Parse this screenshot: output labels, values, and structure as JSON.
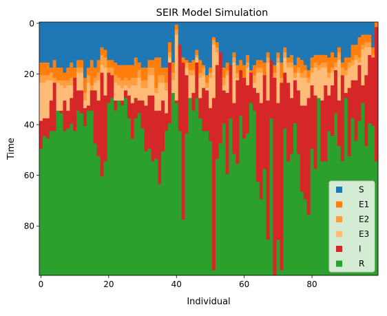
{
  "chart_data": {
    "type": "heatmap",
    "title": "SEIR Model Simulation",
    "xlabel": "Individual",
    "ylabel": "Time",
    "xlim": [
      -0.5,
      99.5
    ],
    "ylim_inverted": [
      -0.5,
      99.5
    ],
    "x_ticks": [
      0,
      20,
      40,
      60,
      80
    ],
    "y_ticks": [
      0,
      20,
      40,
      60,
      80
    ],
    "n_individuals": 100,
    "n_timesteps": 100,
    "grid": false,
    "legend_position": "lower-right",
    "states": [
      {
        "name": "S",
        "color": "#1f77b4"
      },
      {
        "name": "E1",
        "color": "#ff7f0e"
      },
      {
        "name": "E2",
        "color": "#ff9f40"
      },
      {
        "name": "E3",
        "color": "#ffbb78"
      },
      {
        "name": "I",
        "color": "#d62728"
      },
      {
        "name": "R",
        "color": "#2ca02c"
      }
    ],
    "transition_times": {
      "description": "time step at which each individual enters E1, E2, E3, I, R",
      "E1": [
        16,
        16,
        16,
        18,
        15,
        18,
        18,
        20,
        18,
        16,
        18,
        15,
        15,
        22,
        18,
        15,
        18,
        15,
        10,
        11,
        15,
        15,
        16,
        17,
        17,
        17,
        17,
        17,
        14,
        16,
        18,
        18,
        15,
        15,
        14,
        14,
        18,
        18,
        8,
        16,
        1,
        11,
        14,
        15,
        16,
        15,
        11,
        15,
        17,
        21,
        18,
        6,
        8,
        17,
        18,
        16,
        17,
        12,
        17,
        15,
        17,
        13,
        19,
        17,
        15,
        15,
        16,
        12,
        16,
        17,
        12,
        16,
        10,
        14,
        13,
        17,
        14,
        15,
        17,
        19,
        14,
        13,
        13,
        13,
        13,
        14,
        12,
        14,
        10,
        16,
        14,
        14,
        9,
        9,
        6,
        5,
        5,
        5,
        10,
        0
      ],
      "E2": [
        21,
        21,
        21,
        20,
        22,
        23,
        23,
        23,
        23,
        22,
        22,
        18,
        18,
        28,
        21,
        25,
        22,
        20,
        13,
        14,
        18,
        18,
        21,
        22,
        23,
        22,
        23,
        22,
        22,
        19,
        23,
        23,
        18,
        18,
        26,
        21,
        21,
        24,
        12,
        20,
        3,
        11,
        16,
        16,
        19,
        19,
        13,
        20,
        18,
        24,
        20,
        7,
        10,
        18,
        22,
        19,
        21,
        14,
        20,
        20,
        22,
        16,
        22,
        21,
        18,
        18,
        22,
        14,
        19,
        20,
        14,
        22,
        12,
        16,
        16,
        20,
        18,
        20,
        19,
        22,
        18,
        16,
        17,
        16,
        16,
        20,
        18,
        16,
        12,
        18,
        19,
        16,
        15,
        13,
        14,
        9,
        8,
        8,
        13,
        2
      ],
      "E3": [
        24,
        24,
        23,
        23,
        24,
        24,
        25,
        26,
        25,
        25,
        25,
        20,
        20,
        31,
        24,
        28,
        24,
        23,
        17,
        18,
        21,
        21,
        24,
        25,
        26,
        25,
        26,
        25,
        25,
        22,
        26,
        26,
        21,
        21,
        28,
        24,
        24,
        27,
        14,
        23,
        5,
        14,
        18,
        18,
        21,
        21,
        14,
        22,
        21,
        26,
        22,
        9,
        12,
        21,
        25,
        21,
        24,
        16,
        22,
        23,
        24,
        18,
        24,
        24,
        20,
        20,
        24,
        16,
        22,
        23,
        16,
        24,
        14,
        18,
        18,
        22,
        20,
        22,
        22,
        24,
        20,
        18,
        19,
        18,
        18,
        22,
        20,
        18,
        15,
        21,
        21,
        18,
        17,
        15,
        16,
        11,
        10,
        10,
        15,
        4
      ],
      "I": [
        39,
        38,
        38,
        31,
        24,
        37,
        35,
        31,
        35,
        30,
        22,
        27,
        27,
        34,
        33,
        27,
        27,
        31,
        20,
        29,
        20,
        21,
        31,
        31,
        31,
        27,
        29,
        32,
        30,
        31,
        31,
        33,
        29,
        29,
        35,
        35,
        31,
        36,
        16,
        38,
        31,
        9,
        16,
        21,
        32,
        28,
        16,
        30,
        26,
        27,
        34,
        30,
        17,
        12,
        27,
        28,
        17,
        32,
        23,
        19,
        22,
        25,
        20,
        26,
        28,
        32,
        21,
        31,
        15,
        22,
        32,
        24,
        20,
        24,
        30,
        23,
        27,
        33,
        33,
        30,
        25,
        29,
        30,
        31,
        25,
        29,
        25,
        19,
        31,
        21,
        28,
        26,
        23,
        23,
        17,
        25,
        21,
        13,
        14,
        2
      ],
      "R": [
        50,
        45,
        46,
        43,
        43,
        35,
        36,
        43,
        42,
        40,
        43,
        35,
        36,
        41,
        35,
        35,
        48,
        53,
        61,
        55,
        32,
        30,
        35,
        31,
        33,
        30,
        38,
        46,
        38,
        36,
        42,
        51,
        50,
        55,
        54,
        64,
        51,
        43,
        40,
        28,
        32,
        43,
        78,
        44,
        30,
        35,
        30,
        38,
        43,
        43,
        47,
        98,
        54,
        48,
        40,
        60,
        38,
        52,
        56,
        37,
        46,
        44,
        32,
        35,
        63,
        70,
        58,
        86,
        38,
        100,
        86,
        98,
        42,
        55,
        52,
        40,
        52,
        67,
        70,
        76,
        50,
        58,
        30,
        55,
        55,
        43,
        45,
        36,
        49,
        55,
        30,
        53,
        38,
        47,
        39,
        32,
        49,
        40,
        41,
        55
      ]
    },
    "legend_entries": [
      "S",
      "E1",
      "E2",
      "E3",
      "I",
      "R"
    ]
  }
}
